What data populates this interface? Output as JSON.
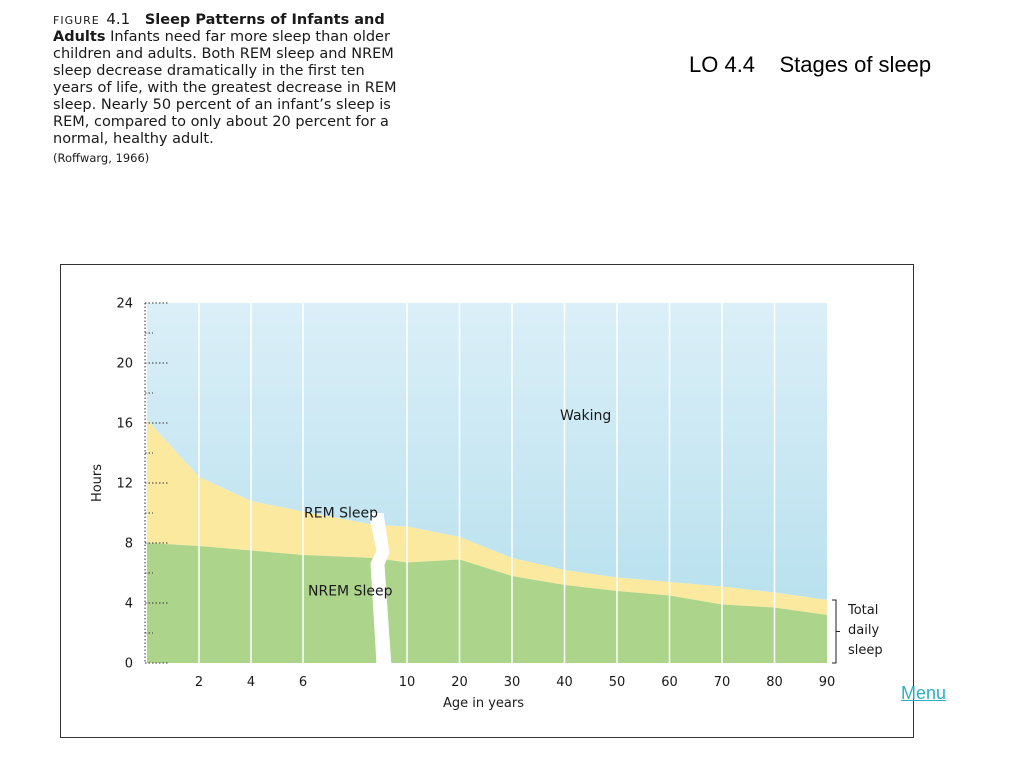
{
  "caption": {
    "figure_label": "FIGURE",
    "figure_number": "4.1",
    "title": "Sleep Patterns of Infants and Adults",
    "body": "Infants need far more sleep than older children and adults. Both REM sleep and NREM sleep decrease dramatically in the first ten years of life, with the greatest decrease in REM sleep. Nearly 50 percent of an infant’s sleep is REM, compared to only about 20 percent for a normal, healthy adult.",
    "citation": "(Roffwarg, 1966)"
  },
  "slide_title": "LO 4.4    Stages of sleep",
  "menu_label": "Menu",
  "chart_data": {
    "type": "area",
    "title": "",
    "xlabel": "Age in years",
    "ylabel": "Hours",
    "x": [
      0,
      2,
      4,
      6,
      8.75,
      10,
      20,
      30,
      40,
      50,
      60,
      70,
      80,
      90
    ],
    "x_tick_labels": [
      "2",
      "4",
      "6",
      "10",
      "20",
      "30",
      "40",
      "50",
      "60",
      "70",
      "80",
      "90"
    ],
    "y_ticks": [
      0,
      4,
      8,
      12,
      16,
      20,
      24
    ],
    "ylim": [
      0,
      24
    ],
    "axis_break_between": [
      "6",
      "10"
    ],
    "series": [
      {
        "name": "NREM Sleep",
        "values": [
          8,
          7.8,
          7.5,
          7.2,
          7.0,
          6.7,
          6.9,
          5.8,
          5.2,
          4.8,
          4.5,
          3.9,
          3.7,
          3.2
        ]
      },
      {
        "name": "REM Sleep",
        "values": [
          8.2,
          4.6,
          3.3,
          2.9,
          2.2,
          2.4,
          1.5,
          1.2,
          1.0,
          0.9,
          0.9,
          1.2,
          1.0,
          1.0
        ]
      },
      {
        "name": "Waking",
        "values": [
          7.8,
          11.6,
          13.2,
          13.9,
          14.8,
          14.9,
          15.6,
          17.0,
          17.8,
          18.3,
          18.6,
          18.9,
          19.3,
          19.8
        ]
      }
    ],
    "bracket_label": [
      "Total",
      "daily",
      "sleep"
    ],
    "colors": {
      "nrem": "#acd48a",
      "rem": "#fbe9a0",
      "waking_top": "#dbeff8",
      "waking_bottom": "#b9e1ee",
      "gridline": "#ffffff"
    },
    "grid": true,
    "legend": "inline labels"
  }
}
